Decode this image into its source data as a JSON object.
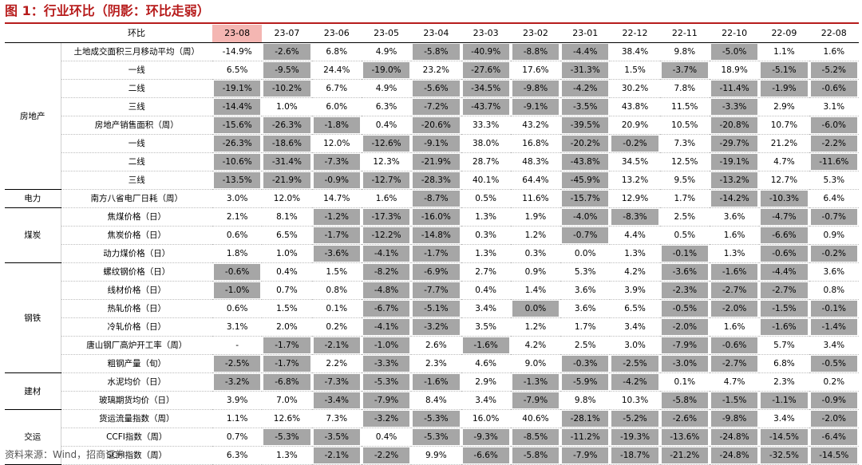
{
  "title": "图 1：行业环比（阴影：环比走弱）",
  "header": {
    "label": "环比",
    "periods": [
      "23-08",
      "23-07",
      "23-06",
      "23-05",
      "23-04",
      "23-03",
      "23-02",
      "23-01",
      "22-12",
      "22-11",
      "22-10",
      "22-09",
      "22-08"
    ]
  },
  "groups": [
    {
      "name": "房地产",
      "rows": [
        {
          "indicator": "土地成交面积三月移动平均（周）",
          "values": [
            "-14.9%",
            "-2.6%",
            "6.8%",
            "4.9%",
            "-5.8%",
            "-40.9%",
            "-8.8%",
            "-4.4%",
            "38.4%",
            "9.8%",
            "-5.0%",
            "1.1%",
            "1.6%"
          ]
        },
        {
          "indicator": "一线",
          "values": [
            "6.5%",
            "-9.5%",
            "24.4%",
            "-19.0%",
            "23.2%",
            "-27.6%",
            "17.6%",
            "-31.3%",
            "1.5%",
            "-3.7%",
            "18.9%",
            "-5.1%",
            "-5.2%"
          ]
        },
        {
          "indicator": "二线",
          "values": [
            "-19.1%",
            "-10.2%",
            "6.7%",
            "4.9%",
            "-5.6%",
            "-34.5%",
            "-9.8%",
            "-4.2%",
            "30.2%",
            "7.8%",
            "-11.4%",
            "-1.9%",
            "-0.6%"
          ]
        },
        {
          "indicator": "三线",
          "values": [
            "-14.4%",
            "1.0%",
            "6.0%",
            "6.3%",
            "-7.2%",
            "-43.7%",
            "-9.1%",
            "-3.5%",
            "43.8%",
            "11.5%",
            "-3.3%",
            "2.9%",
            "3.1%"
          ]
        },
        {
          "indicator": "房地产销售面积（周）",
          "values": [
            "-15.6%",
            "-26.3%",
            "-1.8%",
            "0.4%",
            "-20.6%",
            "33.3%",
            "43.2%",
            "-39.5%",
            "20.9%",
            "10.5%",
            "-20.8%",
            "10.7%",
            "-6.0%"
          ]
        },
        {
          "indicator": "一线",
          "values": [
            "-26.3%",
            "-18.6%",
            "12.0%",
            "-12.6%",
            "-9.1%",
            "38.0%",
            "16.8%",
            "-20.2%",
            "-0.2%",
            "7.3%",
            "-29.7%",
            "21.2%",
            "-2.2%"
          ]
        },
        {
          "indicator": "二线",
          "values": [
            "-10.6%",
            "-31.4%",
            "-7.3%",
            "12.3%",
            "-21.9%",
            "28.7%",
            "48.3%",
            "-43.8%",
            "34.5%",
            "12.5%",
            "-19.1%",
            "4.7%",
            "-11.6%"
          ]
        },
        {
          "indicator": "三线",
          "values": [
            "-13.5%",
            "-21.9%",
            "-0.9%",
            "-12.7%",
            "-28.3%",
            "40.1%",
            "64.4%",
            "-45.9%",
            "13.2%",
            "9.5%",
            "-13.2%",
            "12.7%",
            "5.3%"
          ]
        }
      ]
    },
    {
      "name": "电力",
      "rows": [
        {
          "indicator": "南方八省电厂日耗（周）",
          "values": [
            "3.0%",
            "12.0%",
            "14.7%",
            "1.6%",
            "-8.7%",
            "0.5%",
            "11.6%",
            "-15.7%",
            "12.9%",
            "1.7%",
            "-14.2%",
            "-10.3%",
            "6.4%"
          ]
        }
      ]
    },
    {
      "name": "煤炭",
      "rows": [
        {
          "indicator": "焦煤价格（日）",
          "values": [
            "2.1%",
            "8.1%",
            "-1.2%",
            "-17.3%",
            "-16.0%",
            "1.3%",
            "1.9%",
            "-4.0%",
            "-8.3%",
            "2.5%",
            "3.6%",
            "-4.7%",
            "-0.7%"
          ]
        },
        {
          "indicator": "焦炭价格（日）",
          "values": [
            "0.6%",
            "6.5%",
            "-1.7%",
            "-12.2%",
            "-14.8%",
            "0.3%",
            "1.2%",
            "-0.7%",
            "4.4%",
            "0.5%",
            "1.6%",
            "-6.6%",
            "0.9%"
          ]
        },
        {
          "indicator": "动力煤价格（日）",
          "values": [
            "1.8%",
            "1.0%",
            "-3.6%",
            "-4.1%",
            "-1.7%",
            "1.3%",
            "0.3%",
            "0.0%",
            "1.3%",
            "-0.1%",
            "1.3%",
            "-0.6%",
            "-0.2%"
          ]
        }
      ]
    },
    {
      "name": "钢铁",
      "rows": [
        {
          "indicator": "螺纹钢价格（日）",
          "values": [
            "-0.6%",
            "0.4%",
            "1.5%",
            "-8.2%",
            "-6.9%",
            "2.7%",
            "0.9%",
            "5.3%",
            "4.2%",
            "-3.6%",
            "-1.6%",
            "-4.4%",
            "3.6%"
          ]
        },
        {
          "indicator": "线材价格（日）",
          "values": [
            "-1.0%",
            "0.7%",
            "0.8%",
            "-4.8%",
            "-7.7%",
            "0.4%",
            "1.4%",
            "3.6%",
            "3.9%",
            "-2.3%",
            "-2.7%",
            "-2.7%",
            "0.8%"
          ]
        },
        {
          "indicator": "热轧价格（日）",
          "values": [
            "0.6%",
            "1.5%",
            "0.1%",
            "-6.7%",
            "-5.1%",
            "3.4%",
            "0.0%",
            "3.6%",
            "6.5%",
            "-0.5%",
            "-2.0%",
            "-1.5%",
            "-0.1%"
          ]
        },
        {
          "indicator": "冷轧价格（日）",
          "values": [
            "3.1%",
            "2.0%",
            "0.2%",
            "-4.1%",
            "-3.2%",
            "3.5%",
            "1.2%",
            "1.7%",
            "3.4%",
            "-2.0%",
            "1.6%",
            "-1.6%",
            "-1.4%"
          ]
        },
        {
          "indicator": "唐山钢厂高炉开工率（周）",
          "values": [
            "-",
            "-1.7%",
            "-2.1%",
            "-1.0%",
            "2.6%",
            "-1.6%",
            "4.2%",
            "2.5%",
            "3.0%",
            "-7.9%",
            "-0.6%",
            "5.7%",
            "3.4%"
          ]
        },
        {
          "indicator": "粗钢产量（旬）",
          "values": [
            "-2.5%",
            "-1.7%",
            "2.2%",
            "-3.3%",
            "2.3%",
            "4.6%",
            "9.0%",
            "-0.3%",
            "-2.5%",
            "-3.0%",
            "-2.7%",
            "6.8%",
            "-0.5%"
          ]
        }
      ]
    },
    {
      "name": "建材",
      "rows": [
        {
          "indicator": "水泥均价（日）",
          "values": [
            "-3.2%",
            "-6.8%",
            "-7.3%",
            "-5.3%",
            "-1.6%",
            "2.9%",
            "-1.3%",
            "-5.9%",
            "-4.2%",
            "0.1%",
            "4.7%",
            "2.3%",
            "0.2%"
          ]
        },
        {
          "indicator": "玻璃期货均价（日）",
          "values": [
            "3.9%",
            "7.0%",
            "-3.4%",
            "-7.9%",
            "8.4%",
            "3.4%",
            "-7.9%",
            "9.8%",
            "10.3%",
            "-5.8%",
            "-1.5%",
            "-1.1%",
            "-0.9%"
          ]
        }
      ]
    },
    {
      "name": "交运",
      "rows": [
        {
          "indicator": "货运流量指数（周）",
          "values": [
            "1.1%",
            "12.6%",
            "7.3%",
            "-3.2%",
            "-5.3%",
            "16.0%",
            "40.6%",
            "-28.1%",
            "-5.2%",
            "-2.6%",
            "-9.8%",
            "3.4%",
            "-2.0%"
          ]
        },
        {
          "indicator": "CCFI指数（周）",
          "values": [
            "0.7%",
            "-5.3%",
            "-3.5%",
            "0.4%",
            "-5.3%",
            "-9.3%",
            "-8.5%",
            "-11.2%",
            "-19.3%",
            "-13.6%",
            "-24.8%",
            "-14.5%",
            "-6.4%"
          ]
        },
        {
          "indicator": "SCFI指数（周）",
          "values": [
            "6.3%",
            "1.3%",
            "-2.1%",
            "-2.2%",
            "9.9%",
            "-6.6%",
            "-5.8%",
            "-7.9%",
            "-18.7%",
            "-21.2%",
            "-24.8%",
            "-32.5%",
            "-14.5%"
          ]
        }
      ]
    }
  ],
  "shading": {
    "color_weakening": "#a6a6a6",
    "color_current_period": "#f4b6b2",
    "shaded": [
      [
        0,
        1,
        0,
        0,
        1,
        1,
        1,
        1,
        0,
        0,
        1,
        0,
        0
      ],
      [
        0,
        1,
        0,
        1,
        0,
        1,
        0,
        1,
        0,
        1,
        0,
        1,
        1
      ],
      [
        1,
        1,
        0,
        0,
        1,
        1,
        1,
        1,
        0,
        0,
        1,
        1,
        1
      ],
      [
        1,
        0,
        0,
        0,
        1,
        1,
        1,
        1,
        0,
        0,
        1,
        0,
        0
      ],
      [
        1,
        1,
        1,
        0,
        1,
        0,
        0,
        1,
        0,
        0,
        1,
        0,
        1
      ],
      [
        1,
        1,
        0,
        1,
        1,
        0,
        0,
        1,
        1,
        0,
        1,
        0,
        1
      ],
      [
        1,
        1,
        1,
        0,
        1,
        0,
        0,
        1,
        0,
        0,
        1,
        0,
        1
      ],
      [
        1,
        1,
        1,
        1,
        1,
        0,
        0,
        1,
        0,
        0,
        1,
        0,
        0
      ],
      [
        0,
        0,
        0,
        0,
        1,
        0,
        0,
        1,
        0,
        0,
        1,
        1,
        0
      ],
      [
        0,
        0,
        1,
        1,
        1,
        0,
        0,
        1,
        1,
        0,
        0,
        1,
        1
      ],
      [
        0,
        0,
        1,
        1,
        1,
        0,
        0,
        1,
        0,
        0,
        0,
        1,
        0
      ],
      [
        0,
        0,
        1,
        1,
        1,
        0,
        0,
        0,
        0,
        1,
        0,
        1,
        1
      ],
      [
        1,
        0,
        0,
        1,
        1,
        0,
        0,
        0,
        0,
        1,
        1,
        1,
        0
      ],
      [
        1,
        0,
        0,
        1,
        1,
        0,
        0,
        0,
        0,
        1,
        1,
        1,
        0
      ],
      [
        0,
        0,
        0,
        1,
        1,
        0,
        1,
        0,
        0,
        1,
        1,
        1,
        1
      ],
      [
        0,
        0,
        0,
        1,
        1,
        0,
        0,
        0,
        0,
        1,
        0,
        1,
        1
      ],
      [
        0,
        1,
        1,
        1,
        0,
        1,
        0,
        0,
        0,
        1,
        1,
        0,
        0
      ],
      [
        1,
        1,
        0,
        1,
        0,
        0,
        0,
        1,
        1,
        1,
        1,
        0,
        1
      ],
      [
        1,
        1,
        1,
        1,
        1,
        0,
        1,
        1,
        1,
        0,
        0,
        0,
        0
      ],
      [
        0,
        0,
        1,
        1,
        0,
        0,
        1,
        0,
        0,
        1,
        1,
        1,
        1
      ],
      [
        0,
        0,
        0,
        1,
        1,
        0,
        0,
        1,
        1,
        1,
        1,
        0,
        1
      ],
      [
        0,
        1,
        1,
        0,
        1,
        1,
        1,
        1,
        1,
        1,
        1,
        1,
        1
      ],
      [
        0,
        0,
        1,
        1,
        0,
        1,
        1,
        1,
        1,
        1,
        1,
        1,
        1
      ]
    ]
  },
  "source": "资料来源：Wind，招商证券"
}
